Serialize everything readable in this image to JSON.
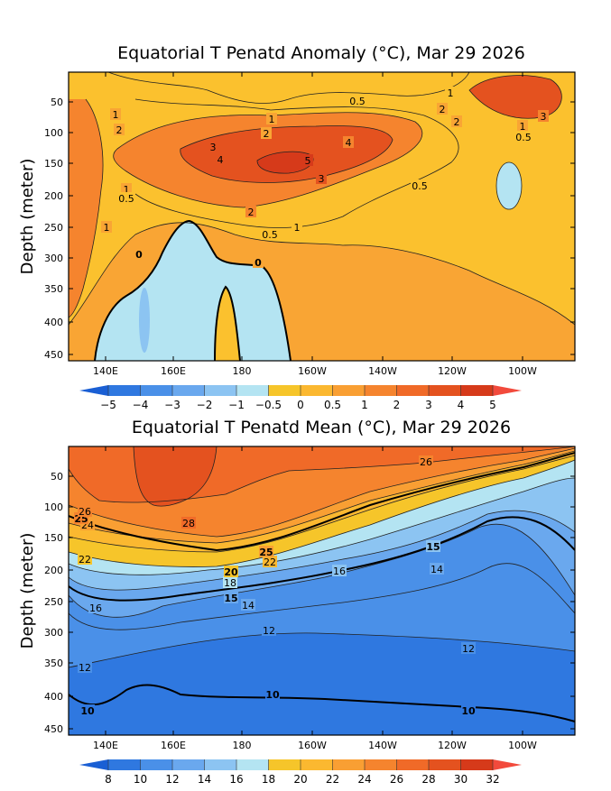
{
  "chart_data": [
    {
      "type": "heatmap",
      "title": "Equatorial T Penatd Anomaly (°C), Mar 29 2026",
      "ylabel": "Depth (meter)",
      "xlabel": "",
      "x_ticks": [
        "140E",
        "160E",
        "180",
        "160W",
        "140W",
        "120W",
        "100W"
      ],
      "y_ticks": [
        "50",
        "100",
        "150",
        "200",
        "250",
        "300",
        "350",
        "400",
        "450"
      ],
      "ylim": [
        450,
        10
      ],
      "colorbar": {
        "labels": [
          "−5",
          "−4",
          "−3",
          "−2",
          "−1",
          "−0.5",
          "0",
          "0.5",
          "1",
          "2",
          "3",
          "4",
          "5"
        ],
        "colors": [
          "#1a5fd4",
          "#2f78e0",
          "#4a90e8",
          "#6aa8ee",
          "#8cc4f2",
          "#b4e4f2",
          "#f6c52a",
          "#fbb830",
          "#f99f33",
          "#f5842e",
          "#f06a28",
          "#e4521f",
          "#d63a1a",
          "#f24a3c"
        ]
      },
      "contour_labels": [
        "0.5",
        "1",
        "2",
        "3",
        "4",
        "5",
        "0"
      ]
    },
    {
      "type": "heatmap",
      "title": "Equatorial T Penatd Mean (°C), Mar 29 2026",
      "ylabel": "Depth (meter)",
      "xlabel": "",
      "x_ticks": [
        "140E",
        "160E",
        "180",
        "160W",
        "140W",
        "120W",
        "100W"
      ],
      "y_ticks": [
        "50",
        "100",
        "150",
        "200",
        "250",
        "300",
        "350",
        "400",
        "450"
      ],
      "ylim": [
        450,
        10
      ],
      "colorbar": {
        "labels": [
          "8",
          "10",
          "12",
          "14",
          "16",
          "18",
          "20",
          "22",
          "24",
          "26",
          "28",
          "30",
          "32"
        ],
        "colors": [
          "#1a5fd4",
          "#2f78e0",
          "#4a90e8",
          "#6aa8ee",
          "#8cc4f2",
          "#b4e4f2",
          "#f6c52a",
          "#fbb830",
          "#f99f33",
          "#f5842e",
          "#f06a28",
          "#e4521f",
          "#d63a1a",
          "#f24a3c"
        ]
      },
      "contour_labels": [
        "10",
        "12",
        "14",
        "15",
        "16",
        "18",
        "20",
        "22",
        "24",
        "25",
        "26",
        "28"
      ]
    }
  ]
}
